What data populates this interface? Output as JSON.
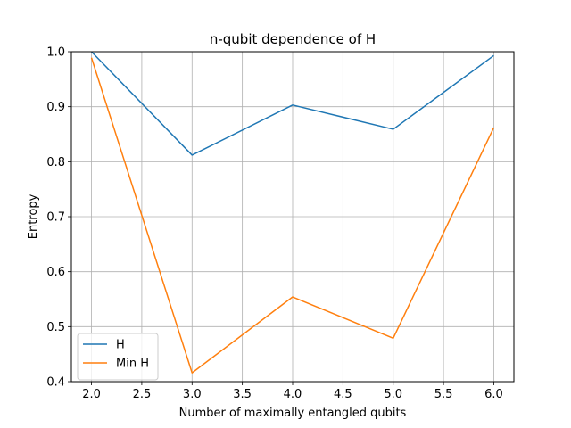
{
  "chart_data": {
    "type": "line",
    "title": "n-qubit dependence of H",
    "xlabel": "Number of maximally entangled qubits",
    "ylabel": "Entropy",
    "x": [
      2,
      3,
      4,
      5,
      6
    ],
    "xlim": [
      1.8,
      6.2
    ],
    "ylim": [
      0.4,
      1.0
    ],
    "xticks": [
      "2.0",
      "2.5",
      "3.0",
      "3.5",
      "4.0",
      "4.5",
      "5.0",
      "5.5",
      "6.0"
    ],
    "yticks": [
      "0.4",
      "0.5",
      "0.6",
      "0.7",
      "0.8",
      "0.9",
      "1.0"
    ],
    "grid": true,
    "legend_position": "lower-left",
    "series": [
      {
        "name": "H",
        "color": "#1f77b4",
        "values": [
          1.0,
          0.812,
          0.903,
          0.859,
          0.993
        ]
      },
      {
        "name": "Min H",
        "color": "#ff7f0e",
        "values": [
          0.989,
          0.416,
          0.554,
          0.479,
          0.862
        ]
      }
    ]
  }
}
